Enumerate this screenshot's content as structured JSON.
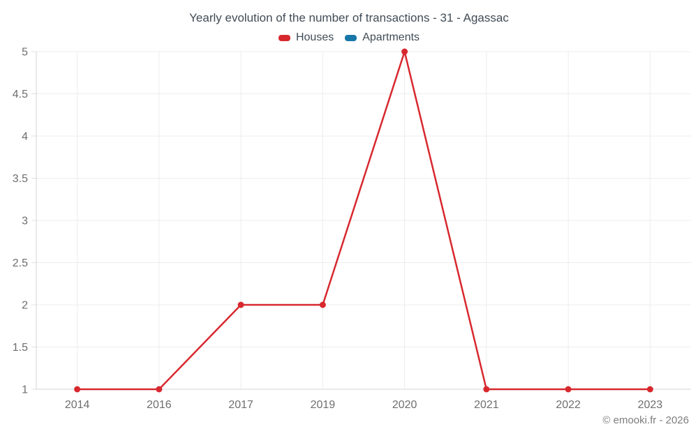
{
  "page": {
    "title": "Yearly evolution of the number of transactions - 31 - Agassac",
    "copyright": "© emooki.fr - 2026"
  },
  "legend": {
    "items": [
      {
        "label": "Houses",
        "color": "#d7282e"
      },
      {
        "label": "Apartments",
        "color": "#1776a8"
      }
    ]
  },
  "chart_data": {
    "type": "line",
    "title": "Yearly evolution of the number of transactions - 31 - Agassac",
    "categories": [
      "2014",
      "2016",
      "2017",
      "2019",
      "2020",
      "2021",
      "2022",
      "2023"
    ],
    "series": [
      {
        "name": "Houses",
        "color": "#d7282e",
        "values": [
          1,
          1,
          2,
          2,
          5,
          1,
          1,
          1
        ]
      },
      {
        "name": "Apartments",
        "color": "#1776a8",
        "values": []
      }
    ],
    "xlabel": "",
    "ylabel": "",
    "ylim": [
      1,
      5
    ],
    "ytick_step": 0.5,
    "ytick_labels": [
      "1",
      "1.5",
      "2",
      "2.5",
      "3",
      "3.5",
      "4",
      "4.5",
      "5"
    ],
    "grid": true,
    "legend_position": "top",
    "marker": "circle"
  }
}
